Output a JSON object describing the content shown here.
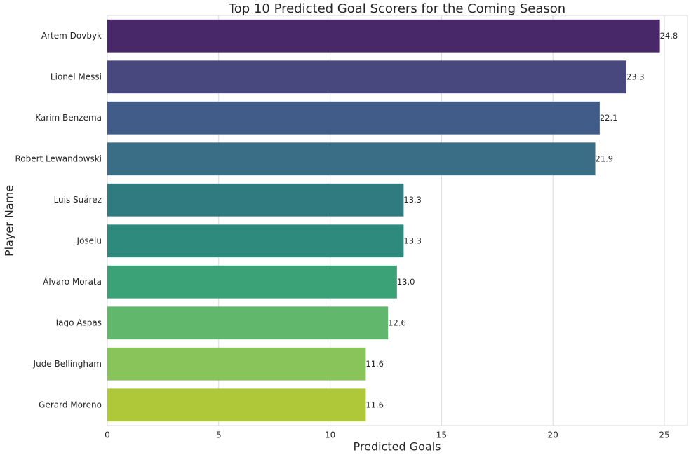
{
  "chart_data": {
    "type": "bar",
    "orientation": "horizontal",
    "title": "Top 10 Predicted Goal Scorers for the Coming Season",
    "xlabel": "Predicted Goals",
    "ylabel": "Player Name",
    "categories": [
      "Artem Dovbyk",
      "Lionel Messi",
      "Karim Benzema",
      "Robert Lewandowski",
      "Luis Suárez",
      "Joselu",
      "Álvaro Morata",
      "Iago Aspas",
      "Jude Bellingham",
      "Gerard Moreno"
    ],
    "values": [
      24.8,
      23.3,
      22.1,
      21.9,
      13.3,
      13.3,
      13.0,
      12.6,
      11.6,
      11.6
    ],
    "value_labels": [
      "24.8",
      "23.3",
      "22.1",
      "21.9",
      "13.3",
      "13.3",
      "13.0",
      "12.6",
      "11.6",
      "11.6"
    ],
    "colors": [
      "#482868",
      "#48487f",
      "#425c89",
      "#3a6d86",
      "#307b80",
      "#2d8a7c",
      "#3aa276",
      "#61b76b",
      "#88c45a",
      "#afc83a"
    ],
    "xlim": [
      0,
      26.04
    ],
    "xticks": [
      0,
      5,
      10,
      15,
      20,
      25
    ],
    "grid": true
  }
}
